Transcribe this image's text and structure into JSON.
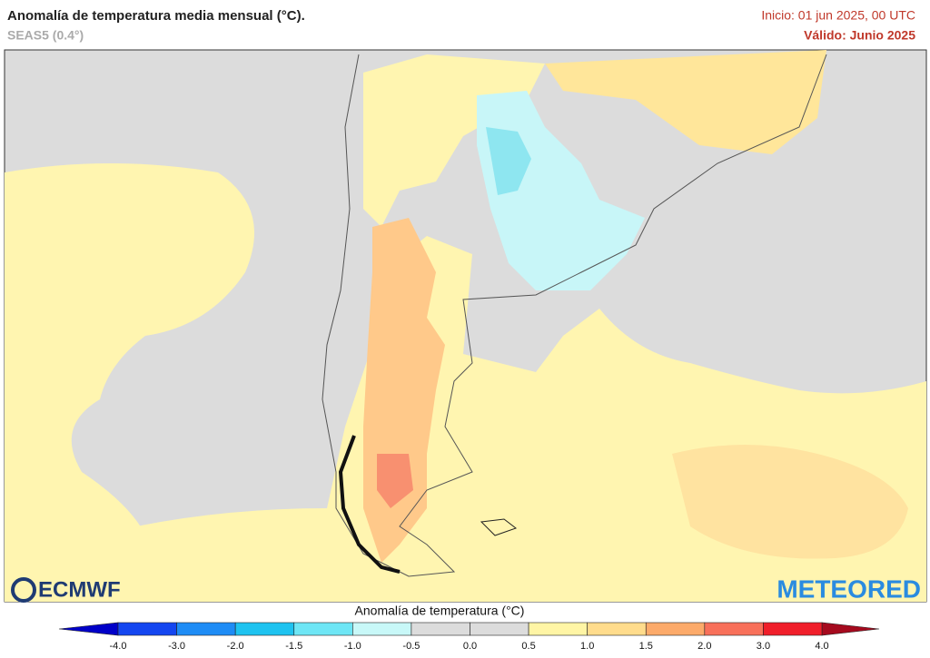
{
  "header": {
    "title": "Anomalía de temperatura media mensual (°C).",
    "model": "SEAS5 (0.4°)",
    "start": "Inicio: 01 jun 2025, 00 UTC",
    "valid": "Válido: Junio 2025"
  },
  "logos": {
    "left": "ECMWF",
    "right": "METEORED"
  },
  "legend": {
    "title": "Anomalía de temperatura (°C)",
    "ticks": [
      "-4.0",
      "-3.0",
      "-2.0",
      "-1.5",
      "-1.0",
      "-0.5",
      "0.0",
      "0.5",
      "1.0",
      "1.5",
      "2.0",
      "3.0",
      "4.0"
    ],
    "colors": [
      "#1446f0",
      "#1e8cf5",
      "#1ec3f0",
      "#6ee6f5",
      "#c8f8f8",
      "#dcdcdc",
      "#dcdcdc",
      "#fff5a5",
      "#ffdc8c",
      "#fcaa6a",
      "#f8705a",
      "#f01e2a"
    ],
    "under_color": "#0000c8",
    "over_color": "#a50a1e"
  }
}
